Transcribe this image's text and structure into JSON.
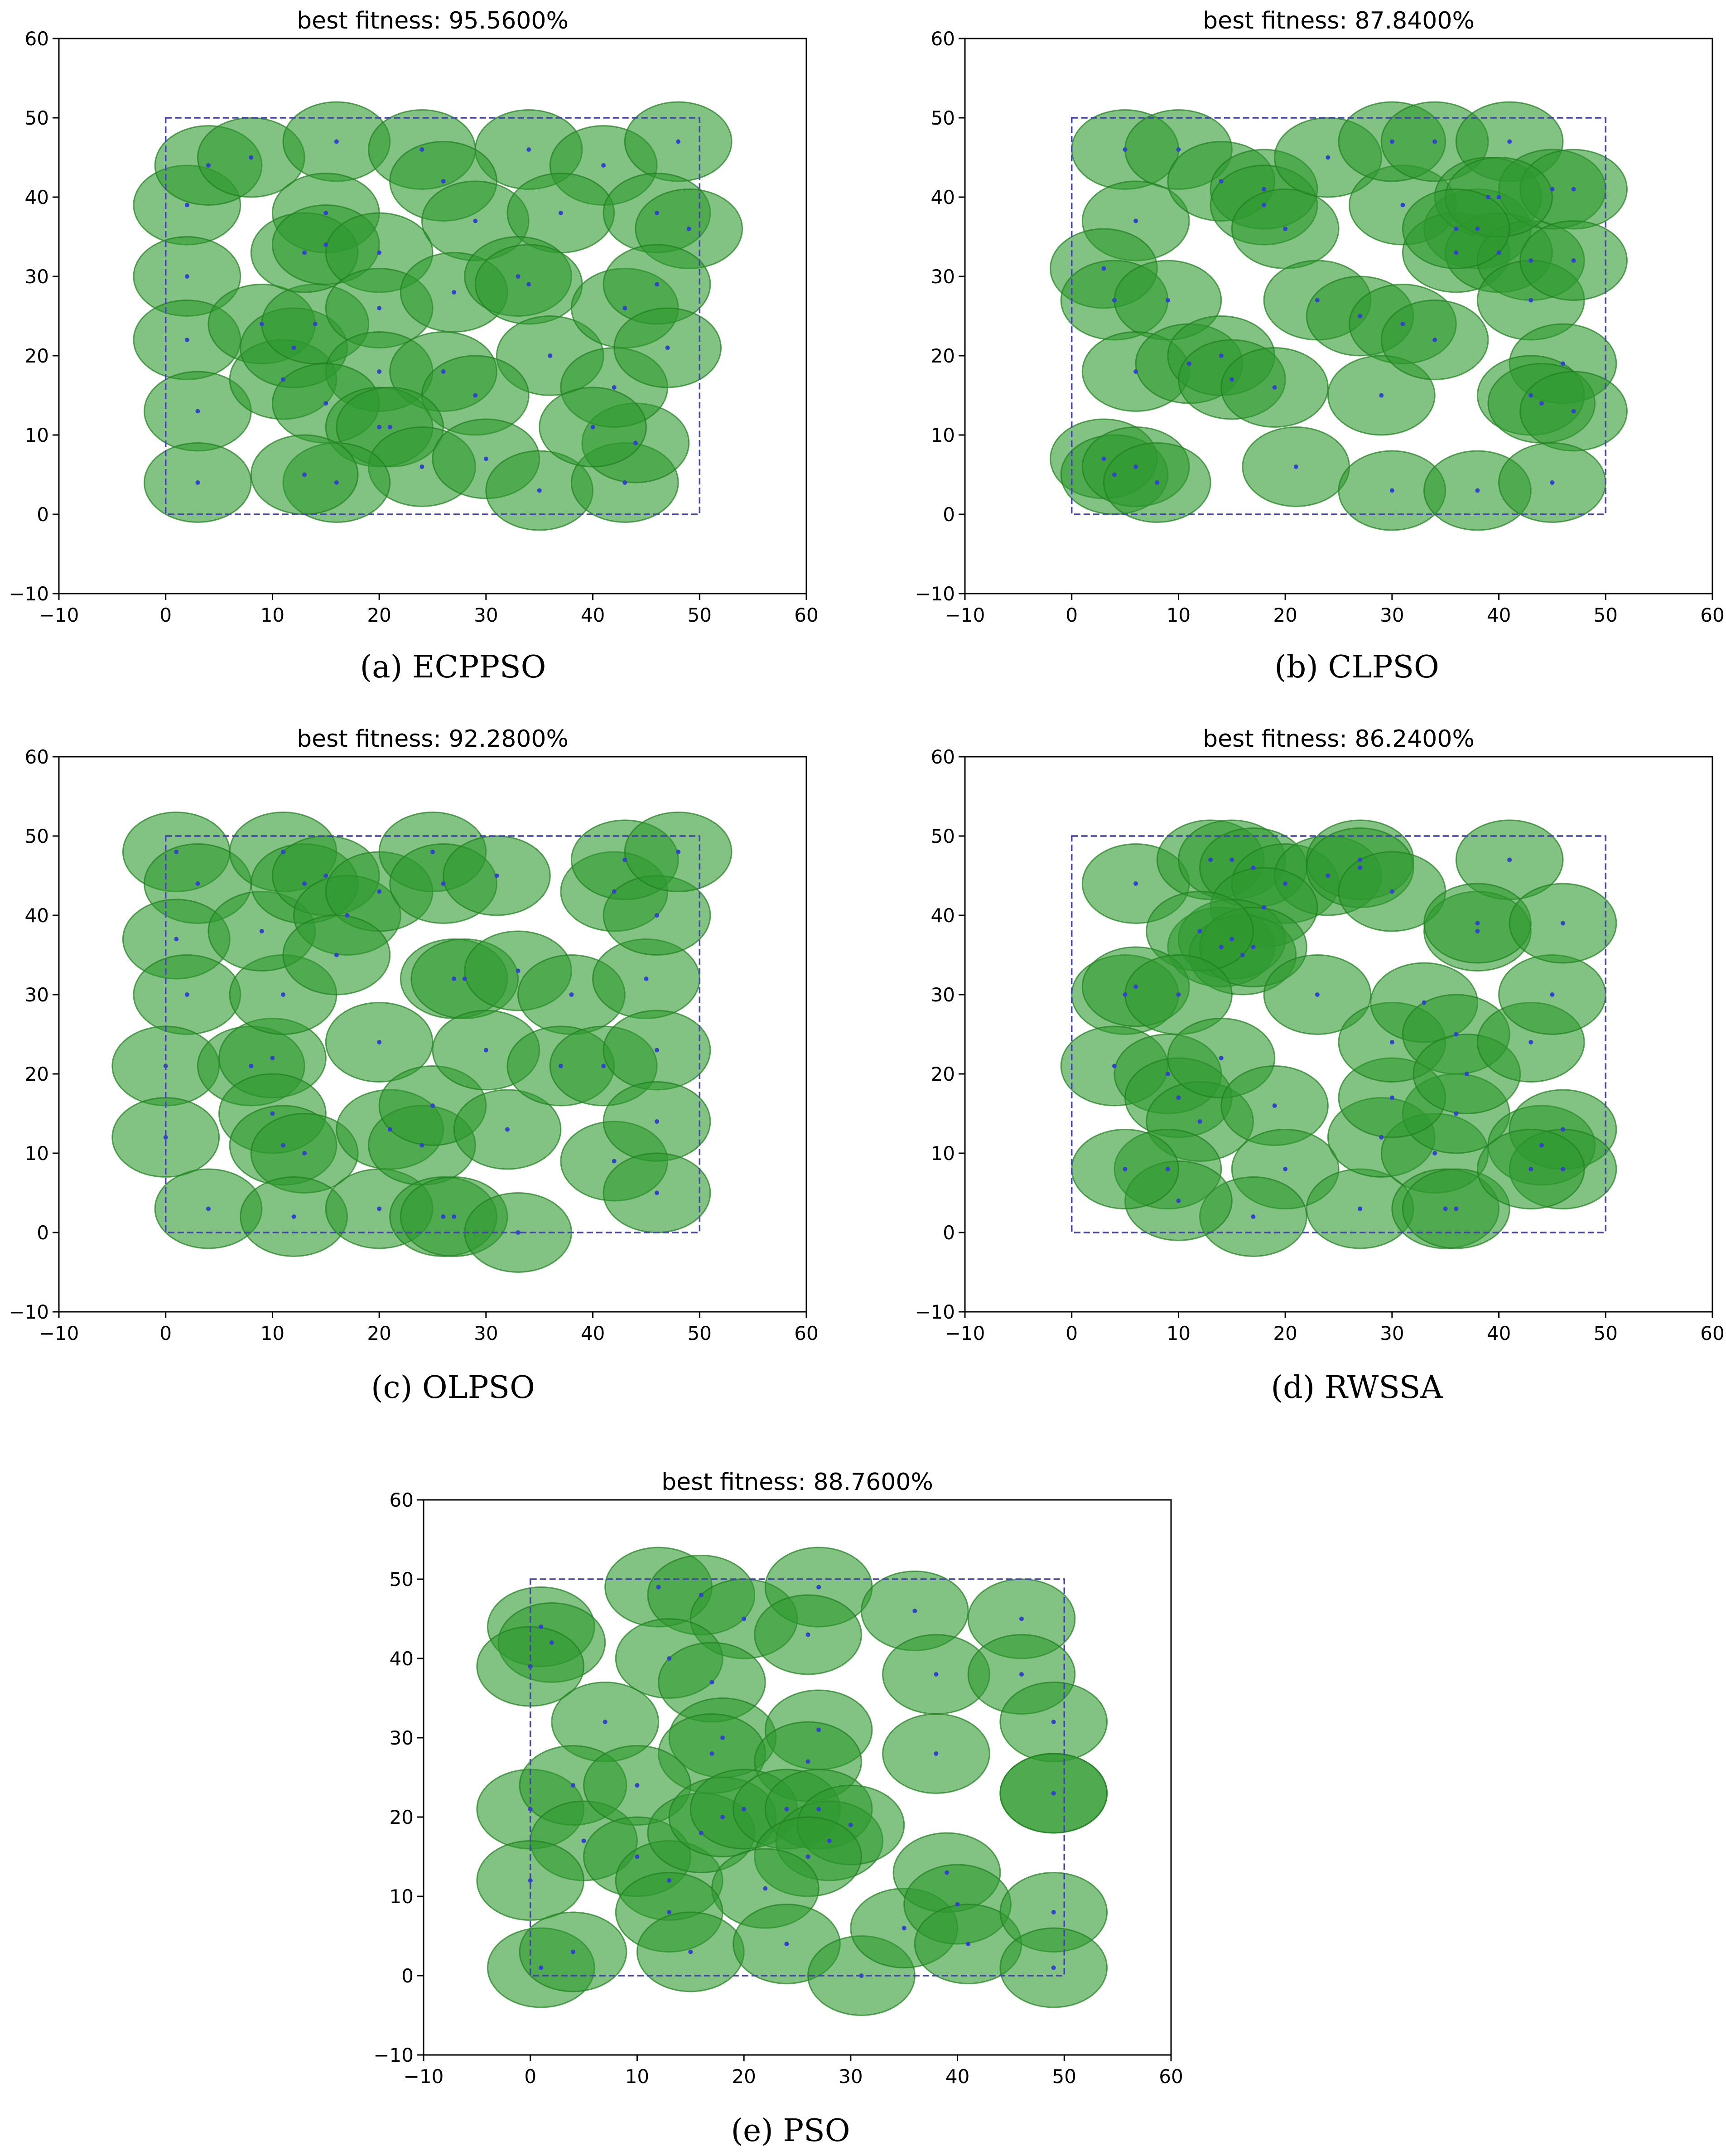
{
  "figure": {
    "captions": [
      "(a) ECPPSO",
      "(b) CLPSO",
      "(c) OLPSO",
      "(d) RWSSA",
      "(e) PSO"
    ]
  },
  "colors": {
    "circle_fill": "#2e9a2e",
    "circle_stroke": "#1f7f1f",
    "sensor": "#3344cc",
    "region": "#4444aa"
  },
  "chart_data": [
    {
      "type": "scatter",
      "title": "best fitness: 95.5600%",
      "caption": "(a) ECPPSO",
      "xlim": [
        -10,
        60
      ],
      "ylim": [
        -10,
        60
      ],
      "xticks": [
        -10,
        0,
        10,
        20,
        30,
        40,
        50,
        60
      ],
      "yticks": [
        -10,
        0,
        10,
        20,
        30,
        40,
        50,
        60
      ],
      "region": {
        "x": [
          0,
          50
        ],
        "y": [
          0,
          50
        ]
      },
      "sensing_radius": 5,
      "points": [
        [
          2,
          39
        ],
        [
          4,
          44
        ],
        [
          8,
          45
        ],
        [
          16,
          47
        ],
        [
          24,
          46
        ],
        [
          34,
          46
        ],
        [
          41,
          44
        ],
        [
          48,
          47
        ],
        [
          15,
          38
        ],
        [
          26,
          42
        ],
        [
          29,
          37
        ],
        [
          37,
          38
        ],
        [
          46,
          38
        ],
        [
          49,
          36
        ],
        [
          2,
          30
        ],
        [
          2,
          22
        ],
        [
          3,
          13
        ],
        [
          3,
          4
        ],
        [
          9,
          24
        ],
        [
          11,
          17
        ],
        [
          12,
          21
        ],
        [
          14,
          24
        ],
        [
          13,
          33
        ],
        [
          15,
          34
        ],
        [
          20,
          33
        ],
        [
          20,
          26
        ],
        [
          20,
          18
        ],
        [
          27,
          28
        ],
        [
          33,
          30
        ],
        [
          34,
          29
        ],
        [
          36,
          20
        ],
        [
          26,
          18
        ],
        [
          29,
          15
        ],
        [
          15,
          14
        ],
        [
          20,
          11
        ],
        [
          21,
          11
        ],
        [
          24,
          6
        ],
        [
          30,
          7
        ],
        [
          35,
          3
        ],
        [
          43,
          4
        ],
        [
          44,
          9
        ],
        [
          42,
          16
        ],
        [
          43,
          26
        ],
        [
          46,
          29
        ],
        [
          47,
          21
        ],
        [
          40,
          11
        ],
        [
          16,
          4
        ],
        [
          13,
          5
        ]
      ]
    },
    {
      "type": "scatter",
      "title": "best fitness: 87.8400%",
      "caption": "(b) CLPSO",
      "xlim": [
        -10,
        60
      ],
      "ylim": [
        -10,
        60
      ],
      "xticks": [
        -10,
        0,
        10,
        20,
        30,
        40,
        50,
        60
      ],
      "yticks": [
        -10,
        0,
        10,
        20,
        30,
        40,
        50,
        60
      ],
      "region": {
        "x": [
          0,
          50
        ],
        "y": [
          0,
          50
        ]
      },
      "sensing_radius": 5,
      "points": [
        [
          5,
          46
        ],
        [
          10,
          46
        ],
        [
          6,
          37
        ],
        [
          3,
          31
        ],
        [
          4,
          27
        ],
        [
          9,
          27
        ],
        [
          6,
          18
        ],
        [
          11,
          19
        ],
        [
          14,
          20
        ],
        [
          15,
          17
        ],
        [
          19,
          16
        ],
        [
          14,
          42
        ],
        [
          18,
          41
        ],
        [
          18,
          39
        ],
        [
          20,
          36
        ],
        [
          24,
          45
        ],
        [
          23,
          27
        ],
        [
          27,
          25
        ],
        [
          31,
          24
        ],
        [
          29,
          15
        ],
        [
          34,
          22
        ],
        [
          31,
          39
        ],
        [
          30,
          47
        ],
        [
          34,
          47
        ],
        [
          38,
          36
        ],
        [
          41,
          47
        ],
        [
          36,
          33
        ],
        [
          39,
          40
        ],
        [
          40,
          33
        ],
        [
          43,
          32
        ],
        [
          43,
          27
        ],
        [
          45,
          41
        ],
        [
          47,
          41
        ],
        [
          47,
          32
        ],
        [
          46,
          19
        ],
        [
          43,
          15
        ],
        [
          44,
          14
        ],
        [
          47,
          13
        ],
        [
          3,
          7
        ],
        [
          4,
          5
        ],
        [
          6,
          6
        ],
        [
          8,
          4
        ],
        [
          21,
          6
        ],
        [
          30,
          3
        ],
        [
          38,
          3
        ],
        [
          45,
          4
        ],
        [
          40,
          40
        ],
        [
          36,
          36
        ]
      ]
    },
    {
      "type": "scatter",
      "title": "best fitness: 92.2800%",
      "caption": "(c) OLPSO",
      "xlim": [
        -10,
        60
      ],
      "ylim": [
        -10,
        60
      ],
      "xticks": [
        -10,
        0,
        10,
        20,
        30,
        40,
        50,
        60
      ],
      "yticks": [
        -10,
        0,
        10,
        20,
        30,
        40,
        50,
        60
      ],
      "region": {
        "x": [
          0,
          50
        ],
        "y": [
          0,
          50
        ]
      },
      "sensing_radius": 5,
      "points": [
        [
          1,
          48
        ],
        [
          3,
          44
        ],
        [
          1,
          37
        ],
        [
          2,
          30
        ],
        [
          0,
          21
        ],
        [
          0,
          12
        ],
        [
          4,
          3
        ],
        [
          8,
          21
        ],
        [
          10,
          22
        ],
        [
          10,
          15
        ],
        [
          11,
          11
        ],
        [
          13,
          10
        ],
        [
          12,
          2
        ],
        [
          11,
          30
        ],
        [
          9,
          38
        ],
        [
          11,
          48
        ],
        [
          13,
          44
        ],
        [
          15,
          45
        ],
        [
          17,
          40
        ],
        [
          20,
          43
        ],
        [
          16,
          35
        ],
        [
          20,
          24
        ],
        [
          21,
          13
        ],
        [
          20,
          3
        ],
        [
          24,
          11
        ],
        [
          25,
          16
        ],
        [
          26,
          2
        ],
        [
          27,
          2
        ],
        [
          25,
          48
        ],
        [
          26,
          44
        ],
        [
          31,
          45
        ],
        [
          27,
          32
        ],
        [
          28,
          32
        ],
        [
          33,
          33
        ],
        [
          30,
          23
        ],
        [
          32,
          13
        ],
        [
          33,
          0
        ],
        [
          38,
          30
        ],
        [
          37,
          21
        ],
        [
          41,
          21
        ],
        [
          42,
          43
        ],
        [
          43,
          47
        ],
        [
          45,
          32
        ],
        [
          46,
          40
        ],
        [
          46,
          23
        ],
        [
          42,
          9
        ],
        [
          46,
          14
        ],
        [
          46,
          5
        ],
        [
          48,
          48
        ]
      ]
    },
    {
      "type": "scatter",
      "title": "best fitness: 86.2400%",
      "caption": "(d) RWSSA",
      "xlim": [
        -10,
        60
      ],
      "ylim": [
        -10,
        60
      ],
      "xticks": [
        -10,
        0,
        10,
        20,
        30,
        40,
        50,
        60
      ],
      "yticks": [
        -10,
        0,
        10,
        20,
        30,
        40,
        50,
        60
      ],
      "region": {
        "x": [
          0,
          50
        ],
        "y": [
          0,
          50
        ]
      },
      "sensing_radius": 5,
      "points": [
        [
          6,
          44
        ],
        [
          13,
          47
        ],
        [
          15,
          47
        ],
        [
          17,
          46
        ],
        [
          20,
          44
        ],
        [
          24,
          45
        ],
        [
          27,
          47
        ],
        [
          27,
          46
        ],
        [
          30,
          43
        ],
        [
          41,
          47
        ],
        [
          18,
          41
        ],
        [
          14,
          36
        ],
        [
          15,
          37
        ],
        [
          16,
          35
        ],
        [
          17,
          36
        ],
        [
          12,
          38
        ],
        [
          23,
          30
        ],
        [
          5,
          30
        ],
        [
          6,
          31
        ],
        [
          10,
          30
        ],
        [
          4,
          21
        ],
        [
          9,
          20
        ],
        [
          10,
          17
        ],
        [
          12,
          14
        ],
        [
          14,
          22
        ],
        [
          19,
          16
        ],
        [
          20,
          8
        ],
        [
          17,
          2
        ],
        [
          9,
          8
        ],
        [
          10,
          4
        ],
        [
          5,
          8
        ],
        [
          27,
          3
        ],
        [
          29,
          12
        ],
        [
          34,
          10
        ],
        [
          35,
          3
        ],
        [
          36,
          3
        ],
        [
          36,
          15
        ],
        [
          30,
          17
        ],
        [
          30,
          24
        ],
        [
          33,
          29
        ],
        [
          36,
          25
        ],
        [
          37,
          20
        ],
        [
          38,
          38
        ],
        [
          38,
          39
        ],
        [
          43,
          24
        ],
        [
          45,
          30
        ],
        [
          46,
          39
        ],
        [
          44,
          11
        ],
        [
          46,
          13
        ],
        [
          46,
          8
        ],
        [
          43,
          8
        ]
      ]
    },
    {
      "type": "scatter",
      "title": "best fitness: 88.7600%",
      "caption": "(e) PSO",
      "xlim": [
        -10,
        60
      ],
      "ylim": [
        -10,
        60
      ],
      "xticks": [
        -10,
        0,
        10,
        20,
        30,
        40,
        50,
        60
      ],
      "yticks": [
        -10,
        0,
        10,
        20,
        30,
        40,
        50,
        60
      ],
      "region": {
        "x": [
          0,
          50
        ],
        "y": [
          0,
          50
        ]
      },
      "sensing_radius": 5,
      "points": [
        [
          1,
          44
        ],
        [
          2,
          42
        ],
        [
          0,
          39
        ],
        [
          12,
          49
        ],
        [
          16,
          48
        ],
        [
          20,
          45
        ],
        [
          27,
          49
        ],
        [
          26,
          43
        ],
        [
          36,
          46
        ],
        [
          38,
          38
        ],
        [
          46,
          45
        ],
        [
          46,
          38
        ],
        [
          49,
          32
        ],
        [
          49,
          23
        ],
        [
          49,
          23
        ],
        [
          13,
          40
        ],
        [
          17,
          37
        ],
        [
          7,
          32
        ],
        [
          18,
          30
        ],
        [
          17,
          28
        ],
        [
          27,
          31
        ],
        [
          26,
          27
        ],
        [
          38,
          28
        ],
        [
          0,
          21
        ],
        [
          4,
          24
        ],
        [
          5,
          17
        ],
        [
          10,
          24
        ],
        [
          10,
          15
        ],
        [
          13,
          12
        ],
        [
          16,
          18
        ],
        [
          18,
          20
        ],
        [
          20,
          21
        ],
        [
          24,
          21
        ],
        [
          27,
          21
        ],
        [
          28,
          17
        ],
        [
          30,
          19
        ],
        [
          26,
          15
        ],
        [
          22,
          11
        ],
        [
          13,
          8
        ],
        [
          15,
          3
        ],
        [
          0,
          12
        ],
        [
          1,
          1
        ],
        [
          4,
          3
        ],
        [
          24,
          4
        ],
        [
          31,
          0
        ],
        [
          35,
          6
        ],
        [
          39,
          13
        ],
        [
          40,
          9
        ],
        [
          41,
          4
        ],
        [
          49,
          8
        ],
        [
          49,
          1
        ]
      ]
    }
  ]
}
